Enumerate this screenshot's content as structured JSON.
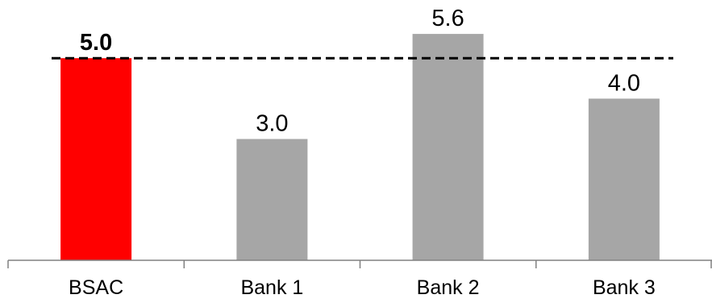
{
  "chart_data": {
    "type": "bar",
    "categories": [
      "BSAC",
      "Bank 1",
      "Bank 2",
      "Bank 3"
    ],
    "values": [
      5.0,
      3.0,
      5.6,
      4.0
    ],
    "value_labels": [
      "5.0",
      "3.0",
      "5.6",
      "4.0"
    ],
    "highlight_category": "BSAC",
    "reference_line": {
      "value": 5.0,
      "style": "dashed",
      "color": "#000000"
    },
    "colors": {
      "highlight": "#FF0000",
      "default": "#A6A6A6",
      "axis": "#808080"
    },
    "title": "",
    "xlabel": "",
    "ylabel": "",
    "ylim": [
      0,
      6.2
    ],
    "grid": false,
    "legend": "none"
  }
}
